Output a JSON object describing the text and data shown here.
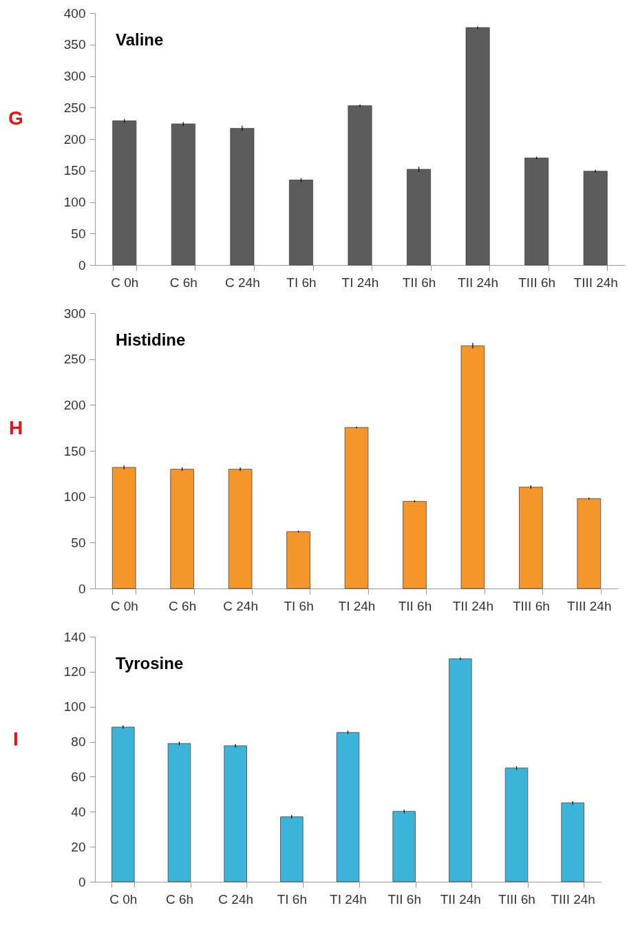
{
  "chart_data": [
    {
      "type": "bar",
      "title": "Valine",
      "annotations": [
        "G"
      ],
      "categories": [
        "C 0h",
        "C 6h",
        "C 24h",
        "TI 6h",
        "TI 24h",
        "TII 6h",
        "TII 24h",
        "TIII 6h",
        "TIII 24h"
      ],
      "values": [
        229,
        224,
        217,
        135,
        253,
        152,
        377,
        170,
        149
      ],
      "errors": [
        3,
        3,
        4,
        3,
        2,
        4,
        2,
        2,
        2
      ],
      "color": "#5c5c5c",
      "ylim": [
        0,
        400
      ],
      "yticks": [
        0,
        50,
        100,
        150,
        200,
        250,
        300,
        350,
        400
      ]
    },
    {
      "type": "bar",
      "title": "Histidine",
      "annotations": [
        "H"
      ],
      "categories": [
        "C 0h",
        "C 6h",
        "C 24h",
        "TI 6h",
        "TI 24h",
        "TII 6h",
        "TII 24h",
        "TIII 6h",
        "TIII 24h"
      ],
      "values": [
        132,
        130,
        130,
        62,
        175.5,
        95,
        264.5,
        110.5,
        98
      ],
      "errors": [
        2,
        2,
        2,
        1,
        1,
        1,
        3,
        2,
        1
      ],
      "color": "#f5962a",
      "ylim": [
        0,
        300
      ],
      "yticks": [
        0,
        50,
        100,
        150,
        200,
        250,
        300
      ]
    },
    {
      "type": "bar",
      "title": "Tyrosine",
      "annotations": [
        "I"
      ],
      "categories": [
        "C 0h",
        "C 6h",
        "C 24h",
        "TI 6h",
        "TI 24h",
        "TII 6h",
        "TII 24h",
        "TIII 6h",
        "TIII 24h"
      ],
      "values": [
        88.4,
        79,
        77.7,
        37.1,
        85.3,
        40.2,
        127.4,
        65,
        45.1
      ],
      "errors": [
        1,
        1,
        1,
        1,
        1,
        1,
        0.7,
        1,
        1
      ],
      "color": "#3cb4da",
      "ylim": [
        0,
        140
      ],
      "yticks": [
        0,
        20,
        40,
        60,
        80,
        100,
        120,
        140
      ]
    }
  ]
}
